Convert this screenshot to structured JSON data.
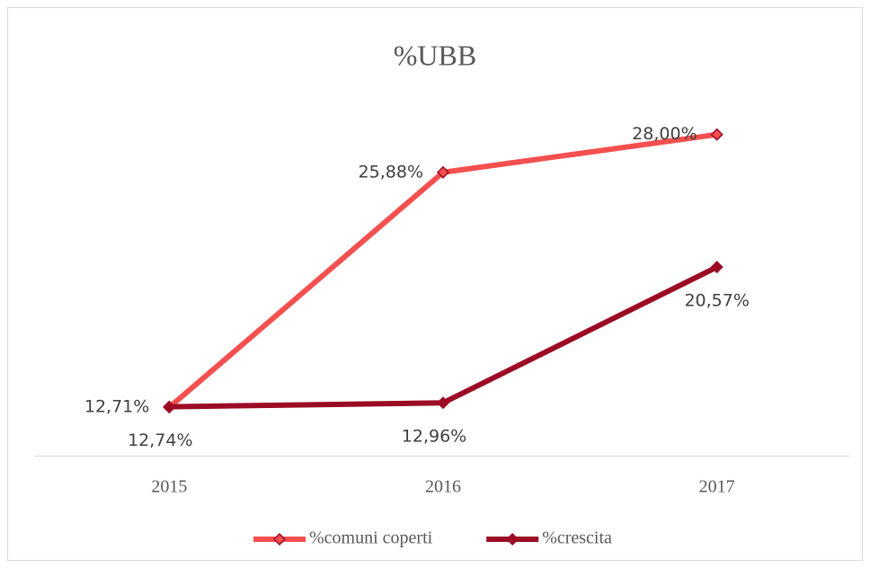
{
  "chart_data": {
    "type": "line",
    "title": "%UBB",
    "categories": [
      "2015",
      "2016",
      "2017"
    ],
    "series": [
      {
        "name": "%comuni coperti",
        "color": "#f4504f",
        "values": [
          12.71,
          25.88,
          28.0
        ],
        "value_labels": [
          "12,71%",
          "25,88%",
          "28,00%"
        ]
      },
      {
        "name": "%crescita",
        "color": "#9c0b25",
        "values": [
          12.74,
          12.96,
          20.57
        ],
        "value_labels": [
          "12,74%",
          "12,96%",
          "20,57%"
        ]
      }
    ],
    "ylim": [
      10,
      30
    ],
    "grid": false,
    "legend": "bottom"
  }
}
